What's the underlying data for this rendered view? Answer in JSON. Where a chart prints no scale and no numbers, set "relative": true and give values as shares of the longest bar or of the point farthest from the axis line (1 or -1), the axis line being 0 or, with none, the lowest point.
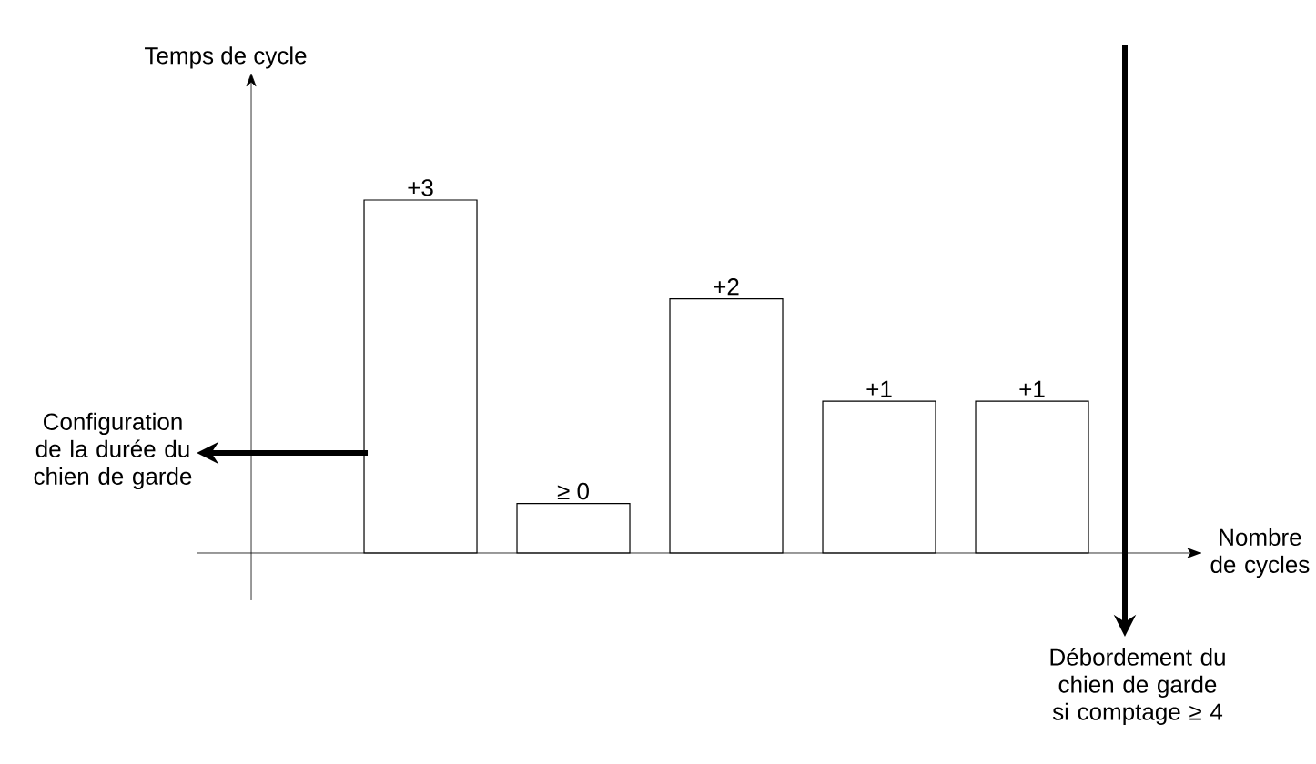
{
  "chart_data": {
    "type": "bar",
    "relative": true,
    "xlabel": "Nombre de cycles",
    "categories": [
      null,
      null,
      null,
      null,
      null
    ],
    "values": [
      1,
      0.14,
      0.72,
      0.43,
      0.43
    ],
    "color": "#ffffff",
    "annotations": [
      "+3",
      "≥ 0",
      "+2",
      "+1",
      "+1",
      "Configuration de la durée du chien de garde",
      "Débordement du chien de garde si comptage ≥ 4",
      "Temps de cycle"
    ]
  }
}
